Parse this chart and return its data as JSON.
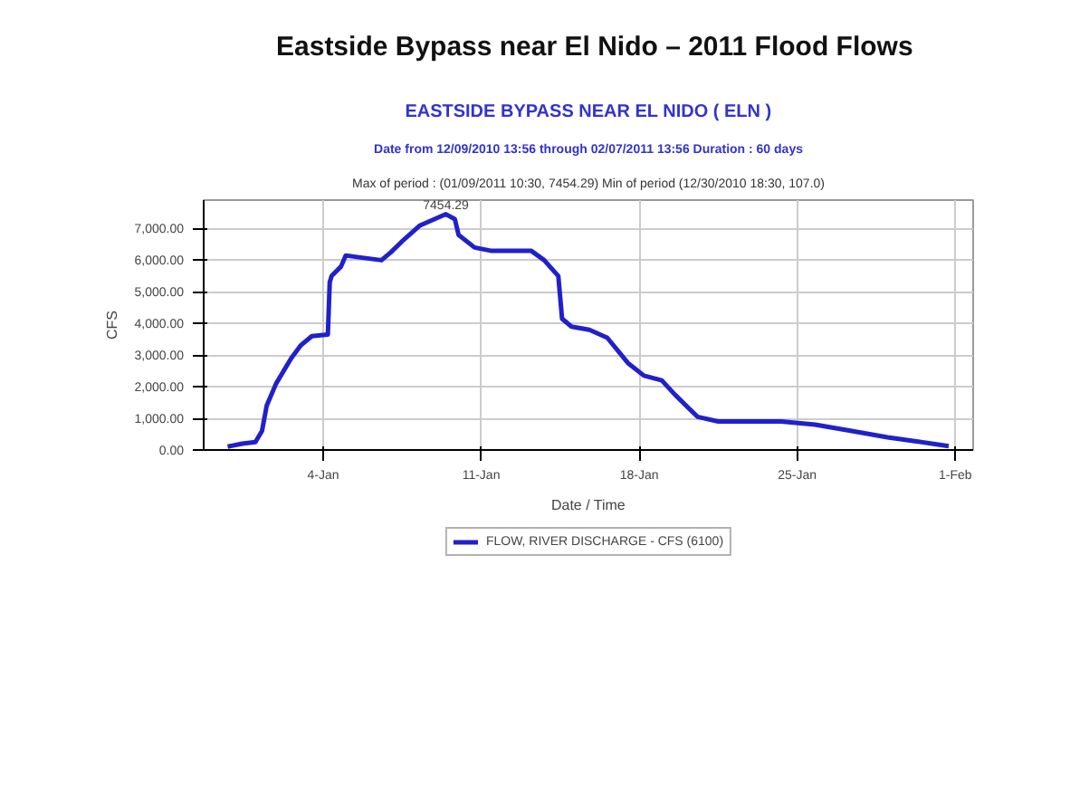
{
  "chart_data": {
    "type": "line",
    "title": "Eastside Bypass near El Nido – 2011 Flood Flows",
    "subtitle": "EASTSIDE BYPASS NEAR EL NIDO ( ELN )",
    "annotations": [
      "Date from 12/09/2010 13:56 through 02/07/2011 13:56 Duration : 60 days",
      "Max of period : (01/09/2011 10:30, 7454.29) Min of period (12/30/2010 18:30, 107.0)",
      {
        "text": "7454.29",
        "x": "2011-01-09T10:30",
        "y": 7454.29
      }
    ],
    "xlabel": "Date / Time",
    "ylabel": "CFS",
    "x": [
      "2010-12-30T18:30",
      "2010-12-31T10:00",
      "2011-01-01T00:00",
      "2011-01-01T07:00",
      "2011-01-01T12:00",
      "2011-01-01T22:00",
      "2011-01-02T14:00",
      "2011-01-03T00:00",
      "2011-01-03T12:00",
      "2011-01-04T05:00",
      "2011-01-04T07:00",
      "2011-01-04T09:00",
      "2011-01-04T19:00",
      "2011-01-05T00:00",
      "2011-01-05T12:00",
      "2011-01-06T14:00",
      "2011-01-07T00:00",
      "2011-01-07T12:00",
      "2011-01-08T07:00",
      "2011-01-09T10:30",
      "2011-01-09T20:00",
      "2011-01-10T00:00",
      "2011-01-10T17:00",
      "2011-01-11T10:00",
      "2011-01-13T05:00",
      "2011-01-13T19:00",
      "2011-01-14T10:00",
      "2011-01-14T14:00",
      "2011-01-15T00:00",
      "2011-01-15T19:00",
      "2011-01-16T14:00",
      "2011-01-17T12:00",
      "2011-01-18T05:00",
      "2011-01-19T00:00",
      "2011-01-19T14:00",
      "2011-01-20T14:00",
      "2011-01-21T12:00",
      "2011-01-24T07:00",
      "2011-01-25T19:00",
      "2011-01-27T10:00",
      "2011-01-29T00:00",
      "2011-01-30T05:00",
      "2011-01-31T17:00"
    ],
    "series": [
      {
        "name": "FLOW, RIVER DISCHARGE - CFS (6100)",
        "color": "#2020cc",
        "values": [
          107,
          200,
          250,
          600,
          1400,
          2100,
          2900,
          3300,
          3600,
          3650,
          5300,
          5500,
          5800,
          6150,
          6100,
          6000,
          6250,
          6600,
          7100,
          7454.29,
          7300,
          6800,
          6400,
          6300,
          6300,
          6000,
          5500,
          4150,
          3900,
          3800,
          3550,
          2750,
          2350,
          2200,
          1750,
          1050,
          900,
          900,
          800,
          600,
          400,
          280,
          120
        ]
      }
    ],
    "xlim": [
      "2010-12-29T17:00",
      "2011-02-01T19:00"
    ],
    "xticks": [
      {
        "value": "2011-01-04",
        "label": "4-Jan"
      },
      {
        "value": "2011-01-11",
        "label": "11-Jan"
      },
      {
        "value": "2011-01-18",
        "label": "18-Jan"
      },
      {
        "value": "2011-01-25",
        "label": "25-Jan"
      },
      {
        "value": "2011-02-01",
        "label": "1-Feb"
      }
    ],
    "ylim": [
      0,
      7900
    ],
    "yticks": [
      {
        "value": 0,
        "label": "0.00"
      },
      {
        "value": 1000,
        "label": "1,000.00"
      },
      {
        "value": 2000,
        "label": "2,000.00"
      },
      {
        "value": 3000,
        "label": "3,000.00"
      },
      {
        "value": 4000,
        "label": "4,000.00"
      },
      {
        "value": 5000,
        "label": "5,000.00"
      },
      {
        "value": 6000,
        "label": "6,000.00"
      },
      {
        "value": 7000,
        "label": "7,000.00"
      }
    ],
    "grid": true,
    "legend": "bottom",
    "line_style": "solid"
  }
}
